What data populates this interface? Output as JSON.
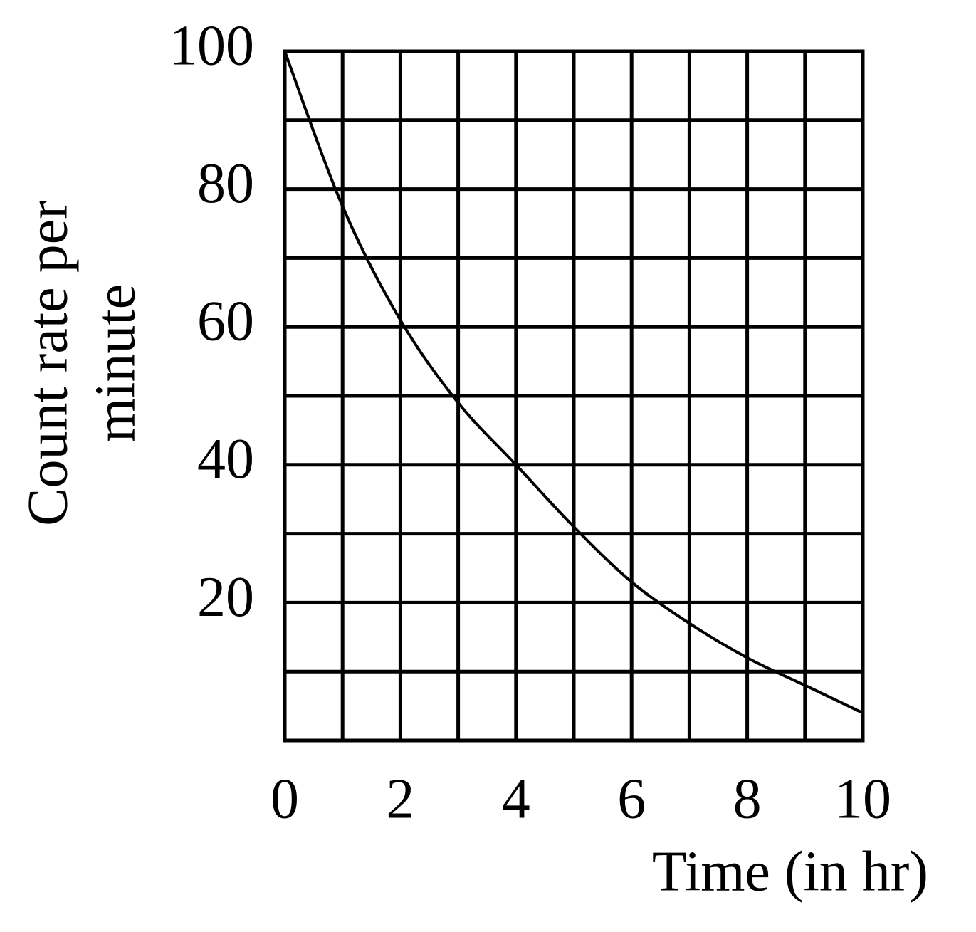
{
  "chart_data": {
    "type": "line",
    "ylabel": [
      "Count rate per",
      "minute"
    ],
    "xlabel": "Time (in hr)",
    "x": [
      0,
      1,
      2,
      3,
      4,
      5,
      6,
      7,
      8,
      9,
      10
    ],
    "series": [
      {
        "color": "#000000",
        "values": [
          100,
          77.5,
          61,
          49,
          40,
          31,
          23,
          17,
          12,
          8,
          4
        ]
      }
    ],
    "xlim": [
      0,
      10
    ],
    "ylim": [
      0,
      100
    ],
    "xticks": [
      0,
      2,
      4,
      6,
      8,
      10
    ],
    "yticks": [
      20,
      40,
      60,
      80,
      100
    ],
    "xgrid": [
      0,
      1,
      2,
      3,
      4,
      5,
      6,
      7,
      8,
      9,
      10
    ],
    "ygrid": [
      0,
      10,
      20,
      30,
      40,
      50,
      60,
      70,
      80,
      90,
      100
    ],
    "grid": true
  }
}
